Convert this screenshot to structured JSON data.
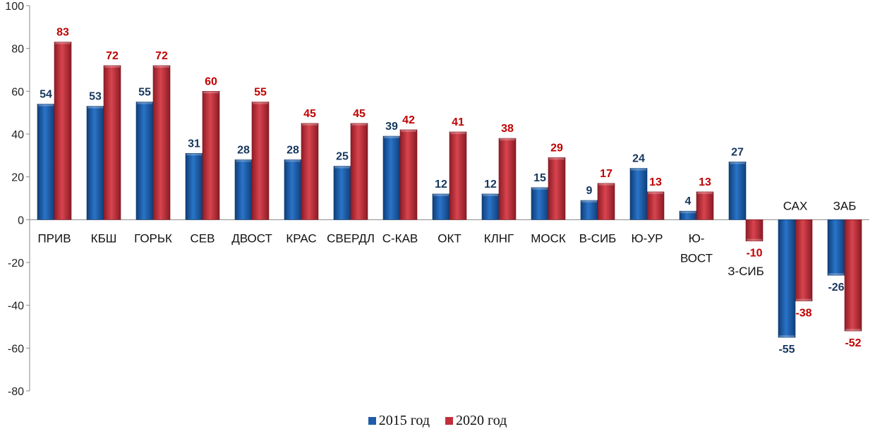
{
  "chart_data": {
    "type": "bar",
    "categories": [
      "ПРИВ",
      "КБШ",
      "ГОРЬК",
      "СЕВ",
      "ДВОСТ",
      "КРАС",
      "СВЕРДЛ",
      "С-КАВ",
      "ОКТ",
      "КЛНГ",
      "МОСК",
      "В-СИБ",
      "Ю-УР",
      "Ю-ВОСТ",
      "З-СИБ",
      "САХ",
      "ЗАБ"
    ],
    "series": [
      {
        "name": "2015 год",
        "color": "#1F5DA8",
        "label_color": "#17375E",
        "values": [
          54,
          53,
          55,
          31,
          28,
          28,
          25,
          39,
          12,
          12,
          15,
          9,
          24,
          4,
          27,
          -55,
          -26
        ]
      },
      {
        "name": "2020 год",
        "color": "#C0303A",
        "label_color": "#C00000",
        "values": [
          83,
          72,
          72,
          60,
          55,
          45,
          45,
          42,
          41,
          38,
          29,
          17,
          13,
          13,
          -10,
          -38,
          -52
        ]
      }
    ],
    "ylim": [
      -80,
      100
    ],
    "yticks": [
      -80,
      -60,
      -40,
      -20,
      0,
      20,
      40,
      60,
      80,
      100
    ],
    "grid": false,
    "legend_position": "bottom"
  }
}
